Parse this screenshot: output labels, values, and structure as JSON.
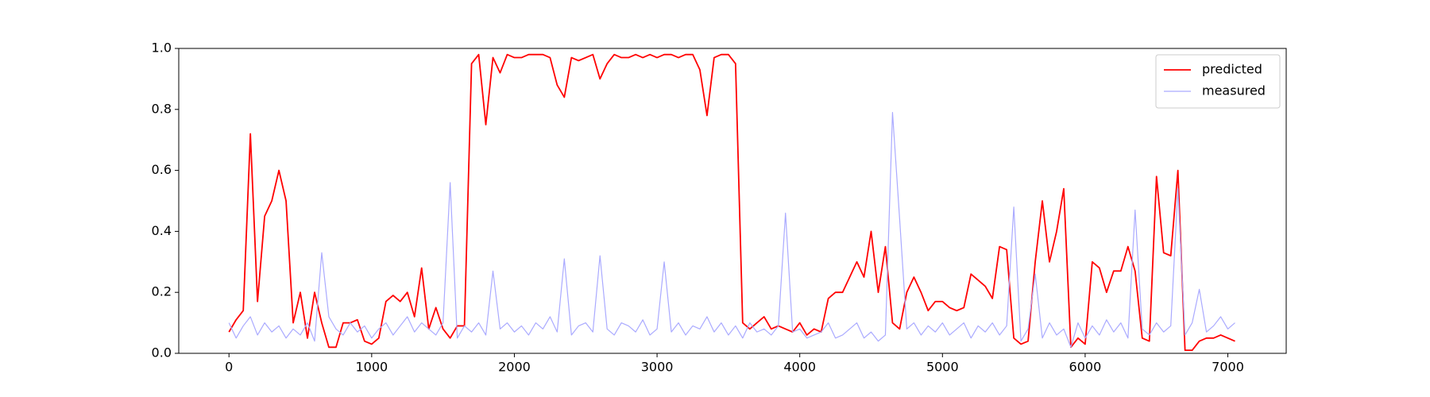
{
  "chart_data": {
    "type": "line",
    "x": [
      0,
      50,
      100,
      150,
      200,
      250,
      300,
      350,
      400,
      450,
      500,
      550,
      600,
      650,
      700,
      750,
      800,
      850,
      900,
      950,
      1000,
      1050,
      1100,
      1150,
      1200,
      1250,
      1300,
      1350,
      1400,
      1450,
      1500,
      1550,
      1600,
      1650,
      1700,
      1750,
      1800,
      1850,
      1900,
      1950,
      2000,
      2050,
      2100,
      2150,
      2200,
      2250,
      2300,
      2350,
      2400,
      2450,
      2500,
      2550,
      2600,
      2650,
      2700,
      2750,
      2800,
      2850,
      2900,
      2950,
      3000,
      3050,
      3100,
      3150,
      3200,
      3250,
      3300,
      3350,
      3400,
      3450,
      3500,
      3550,
      3600,
      3650,
      3700,
      3750,
      3800,
      3850,
      3900,
      3950,
      4000,
      4050,
      4100,
      4150,
      4200,
      4250,
      4300,
      4350,
      4400,
      4450,
      4500,
      4550,
      4600,
      4650,
      4700,
      4750,
      4800,
      4850,
      4900,
      4950,
      5000,
      5050,
      5100,
      5150,
      5200,
      5250,
      5300,
      5350,
      5400,
      5450,
      5500,
      5550,
      5600,
      5650,
      5700,
      5750,
      5800,
      5850,
      5900,
      5950,
      6000,
      6050,
      6100,
      6150,
      6200,
      6250,
      6300,
      6350,
      6400,
      6450,
      6500,
      6550,
      6600,
      6650,
      6700,
      6750,
      6800,
      6850,
      6900,
      6950,
      7000,
      7050
    ],
    "series": [
      {
        "name": "predicted",
        "color": "#ff0000",
        "width": 1.8,
        "values": [
          0.07,
          0.11,
          0.14,
          0.72,
          0.17,
          0.45,
          0.5,
          0.6,
          0.5,
          0.1,
          0.2,
          0.05,
          0.2,
          0.1,
          0.02,
          0.02,
          0.1,
          0.1,
          0.11,
          0.04,
          0.03,
          0.05,
          0.17,
          0.19,
          0.17,
          0.2,
          0.12,
          0.28,
          0.08,
          0.15,
          0.08,
          0.05,
          0.09,
          0.09,
          0.95,
          0.98,
          0.75,
          0.97,
          0.92,
          0.98,
          0.97,
          0.97,
          0.98,
          0.98,
          0.98,
          0.97,
          0.88,
          0.84,
          0.97,
          0.96,
          0.97,
          0.98,
          0.9,
          0.95,
          0.98,
          0.97,
          0.97,
          0.98,
          0.97,
          0.98,
          0.97,
          0.98,
          0.98,
          0.97,
          0.98,
          0.98,
          0.93,
          0.78,
          0.97,
          0.98,
          0.98,
          0.95,
          0.1,
          0.08,
          0.1,
          0.12,
          0.08,
          0.09,
          0.08,
          0.07,
          0.1,
          0.06,
          0.08,
          0.07,
          0.18,
          0.2,
          0.2,
          0.25,
          0.3,
          0.25,
          0.4,
          0.2,
          0.35,
          0.1,
          0.08,
          0.2,
          0.25,
          0.2,
          0.14,
          0.17,
          0.17,
          0.15,
          0.14,
          0.15,
          0.26,
          0.24,
          0.22,
          0.18,
          0.35,
          0.34,
          0.05,
          0.03,
          0.04,
          0.3,
          0.5,
          0.3,
          0.4,
          0.54,
          0.02,
          0.05,
          0.03,
          0.3,
          0.28,
          0.2,
          0.27,
          0.27,
          0.35,
          0.27,
          0.05,
          0.04,
          0.58,
          0.33,
          0.32,
          0.6,
          0.01,
          0.01,
          0.04,
          0.05,
          0.05,
          0.06,
          0.05,
          0.04
        ]
      },
      {
        "name": "measured",
        "color": "#aaaaff",
        "width": 1.2,
        "values": [
          0.1,
          0.05,
          0.09,
          0.12,
          0.06,
          0.1,
          0.07,
          0.09,
          0.05,
          0.08,
          0.06,
          0.1,
          0.04,
          0.33,
          0.12,
          0.08,
          0.06,
          0.1,
          0.07,
          0.09,
          0.05,
          0.08,
          0.1,
          0.06,
          0.09,
          0.12,
          0.07,
          0.1,
          0.08,
          0.06,
          0.1,
          0.56,
          0.05,
          0.09,
          0.07,
          0.1,
          0.06,
          0.27,
          0.08,
          0.1,
          0.07,
          0.09,
          0.06,
          0.1,
          0.08,
          0.12,
          0.07,
          0.31,
          0.06,
          0.09,
          0.1,
          0.07,
          0.32,
          0.08,
          0.06,
          0.1,
          0.09,
          0.07,
          0.11,
          0.06,
          0.08,
          0.3,
          0.07,
          0.1,
          0.06,
          0.09,
          0.08,
          0.12,
          0.07,
          0.1,
          0.06,
          0.09,
          0.05,
          0.1,
          0.07,
          0.08,
          0.06,
          0.09,
          0.46,
          0.07,
          0.08,
          0.05,
          0.06,
          0.07,
          0.1,
          0.05,
          0.06,
          0.08,
          0.1,
          0.05,
          0.07,
          0.04,
          0.06,
          0.79,
          0.44,
          0.08,
          0.1,
          0.06,
          0.09,
          0.07,
          0.1,
          0.06,
          0.08,
          0.1,
          0.05,
          0.09,
          0.07,
          0.1,
          0.06,
          0.09,
          0.48,
          0.04,
          0.08,
          0.26,
          0.05,
          0.1,
          0.06,
          0.08,
          0.02,
          0.1,
          0.05,
          0.09,
          0.06,
          0.11,
          0.07,
          0.1,
          0.05,
          0.47,
          0.08,
          0.06,
          0.1,
          0.07,
          0.09,
          0.54,
          0.06,
          0.1,
          0.21,
          0.07,
          0.09,
          0.12,
          0.08,
          0.1
        ]
      }
    ],
    "xlim": [
      -352,
      7409
    ],
    "ylim": [
      0,
      1
    ],
    "xticks": [
      0,
      1000,
      2000,
      3000,
      4000,
      5000,
      6000,
      7000
    ],
    "yticks": [
      {
        "value": 0,
        "label": "0.0"
      },
      {
        "value": 0.2,
        "label": "0.2"
      },
      {
        "value": 0.4,
        "label": "0.4"
      },
      {
        "value": 0.6,
        "label": "0.6"
      },
      {
        "value": 0.8,
        "label": "0.8"
      },
      {
        "value": 1,
        "label": "1.0"
      }
    ],
    "legend": "upper right"
  }
}
